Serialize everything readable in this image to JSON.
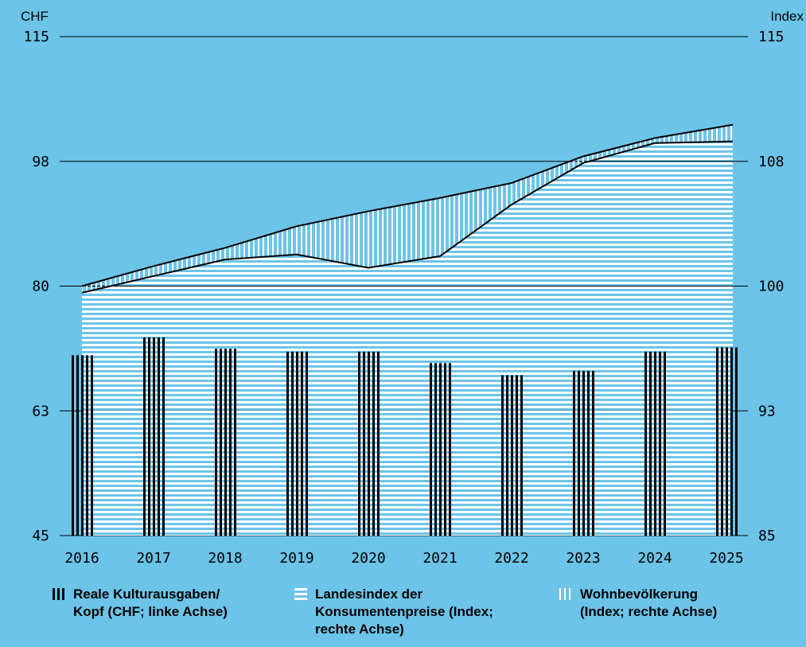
{
  "chart_data": {
    "type": "bar+area",
    "left_axis_label": "CHF",
    "right_axis_label": "Index",
    "left_ticks": [
      "115",
      "98",
      "80",
      "63",
      "45"
    ],
    "right_ticks": [
      "115",
      "108",
      "100",
      "93",
      "85"
    ],
    "left_ylim": [
      45,
      115
    ],
    "right_ylim": [
      85,
      115
    ],
    "categories": [
      "2016",
      "2017",
      "2018",
      "2019",
      "2020",
      "2021",
      "2022",
      "2023",
      "2024",
      "2025"
    ],
    "series": [
      {
        "name": "Reale Kulturausgaben/ Kopf (CHF; linke Achse)",
        "kind": "bar",
        "axis": "left",
        "values": [
          70.3,
          72.8,
          71.2,
          70.8,
          70.8,
          69.2,
          67.5,
          68.1,
          70.8,
          71.4
        ]
      },
      {
        "name": "Landesindex der Konsumentenpreise (Index; rechte Achse)",
        "kind": "area",
        "axis": "right",
        "values": [
          99.6,
          100.6,
          101.6,
          101.9,
          101.1,
          101.8,
          104.9,
          107.4,
          108.6,
          108.7
        ]
      },
      {
        "name": "Wohnbevölkerung (Index; rechte Achse)",
        "kind": "area",
        "axis": "right",
        "values": [
          100.0,
          101.2,
          102.3,
          103.6,
          104.5,
          105.3,
          106.2,
          107.8,
          108.9,
          109.7
        ]
      }
    ]
  },
  "legend": [
    {
      "label": "Reale Kulturausgaben/\nKopf (CHF; linke Achse)"
    },
    {
      "label": "Landesindex der\nKonsumentenpreise (Index;\nrechte Achse)"
    },
    {
      "label": "Wohnbevölkerung\n(Index; rechte Achse)"
    }
  ]
}
